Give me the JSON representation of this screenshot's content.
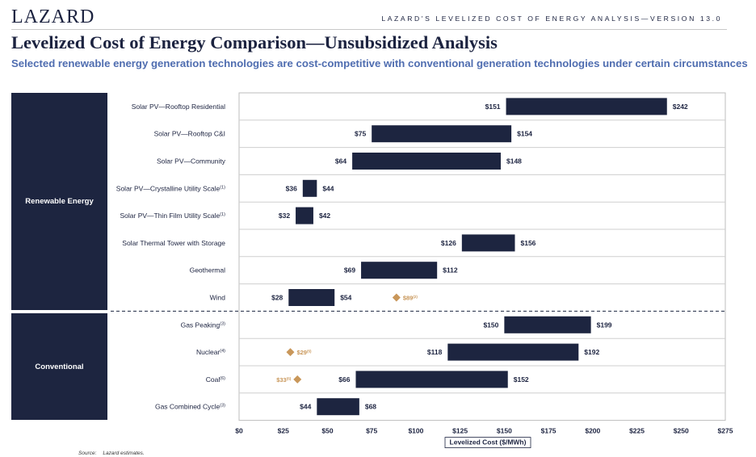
{
  "header": {
    "logo": "LAZARD",
    "doc_title": "LAZARD'S LEVELIZED COST OF ENERGY ANALYSIS—VERSION 13.0",
    "title": "Levelized Cost of Energy Comparison—Unsubsidized Analysis",
    "subtitle": "Selected renewable energy generation technologies are cost-competitive with conventional generation technologies under certain circumstances"
  },
  "groups": [
    {
      "label": "Renewable Energy"
    },
    {
      "label": "Conventional"
    }
  ],
  "source": {
    "label": "Source:",
    "text": "Lazard estimates."
  },
  "colors": {
    "bar": "#1d2540",
    "marker": "#c9975a",
    "grid": "#cfcfcf"
  },
  "chart_data": {
    "type": "bar",
    "orientation": "horizontal-floating",
    "xlabel": "Levelized Cost ($/MWh)",
    "xlim": [
      0,
      275
    ],
    "xticks": [
      0,
      25,
      50,
      75,
      100,
      125,
      150,
      175,
      200,
      225,
      250,
      275
    ],
    "xtick_labels": [
      "$0",
      "$25",
      "$50",
      "$75",
      "$100",
      "$125",
      "$150",
      "$175",
      "$200",
      "$225",
      "$250",
      "$275"
    ],
    "grid": true,
    "categories": [
      {
        "label": "Solar PV—Rooftop Residential",
        "note": "",
        "group": "Renewable Energy",
        "low": 151,
        "high": 242
      },
      {
        "label": "Solar PV—Rooftop C&I",
        "note": "",
        "group": "Renewable Energy",
        "low": 75,
        "high": 154
      },
      {
        "label": "Solar PV—Community",
        "note": "",
        "group": "Renewable Energy",
        "low": 64,
        "high": 148
      },
      {
        "label": "Solar PV—Crystalline Utility Scale",
        "note": "(1)",
        "group": "Renewable Energy",
        "low": 36,
        "high": 44
      },
      {
        "label": "Solar PV—Thin Film Utility Scale",
        "note": "(1)",
        "group": "Renewable Energy",
        "low": 32,
        "high": 42
      },
      {
        "label": "Solar Thermal Tower with Storage",
        "note": "",
        "group": "Renewable Energy",
        "low": 126,
        "high": 156
      },
      {
        "label": "Geothermal",
        "note": "",
        "group": "Renewable Energy",
        "low": 69,
        "high": 112
      },
      {
        "label": "Wind",
        "note": "",
        "group": "Renewable Energy",
        "low": 28,
        "high": 54,
        "marker": {
          "value": 89,
          "label": "$89",
          "note": "(2)"
        }
      },
      {
        "label": "Gas Peaking",
        "note": "(3)",
        "group": "Conventional",
        "low": 150,
        "high": 199
      },
      {
        "label": "Nuclear",
        "note": "(4)",
        "group": "Conventional",
        "low": 118,
        "high": 192,
        "marker": {
          "value": 29,
          "label": "$29",
          "note": "(5)"
        }
      },
      {
        "label": "Coal",
        "note": "(6)",
        "group": "Conventional",
        "low": 66,
        "high": 152,
        "marker": {
          "value": 33,
          "label": "$33",
          "note": "(5)"
        }
      },
      {
        "label": "Gas Combined Cycle",
        "note": "(3)",
        "group": "Conventional",
        "low": 44,
        "high": 68
      }
    ]
  }
}
